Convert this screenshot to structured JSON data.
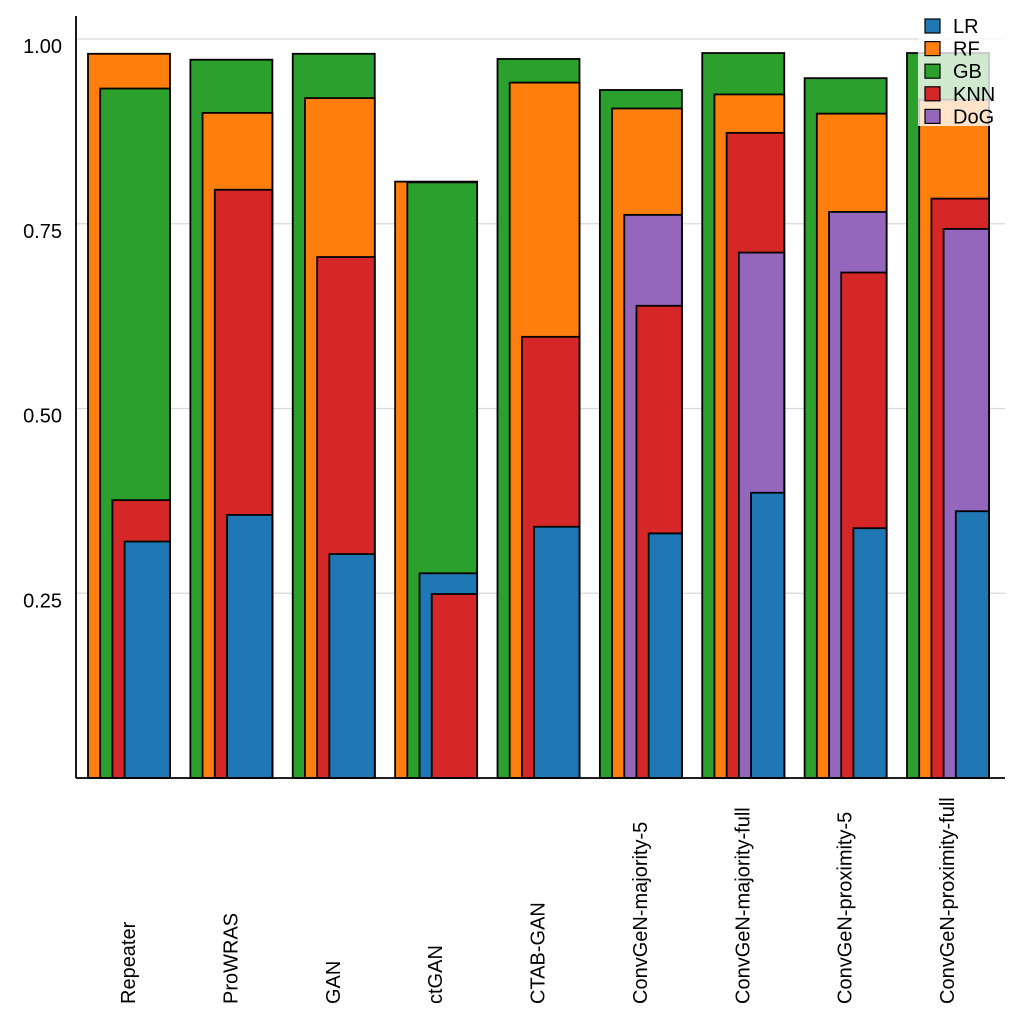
{
  "chart_data": {
    "type": "bar",
    "overlay_style": "grouped-overlay-right-aligned-decreasing-width",
    "categories": [
      "Repeater",
      "ProWRAS",
      "GAN",
      "ctGAN",
      "CTAB-GAN",
      "ConvGeN-majority-5",
      "ConvGeN-majority-full",
      "ConvGeN-proximity-5",
      "ConvGeN-proximity-full"
    ],
    "series": [
      {
        "name": "LR",
        "color": "#1f77b4",
        "values": [
          0.32,
          0.356,
          0.303,
          0.277,
          0.34,
          0.331,
          0.386,
          0.338,
          0.361
        ]
      },
      {
        "name": "RF",
        "color": "#ff7f0e",
        "values": [
          0.98,
          0.9,
          0.92,
          0.807,
          0.941,
          0.906,
          0.925,
          0.899,
          0.918
        ]
      },
      {
        "name": "GB",
        "color": "#2ca02c",
        "values": [
          0.933,
          0.972,
          0.98,
          0.806,
          0.973,
          0.931,
          0.981,
          0.947,
          0.981
        ]
      },
      {
        "name": "KNN",
        "color": "#d62728",
        "values": [
          0.376,
          0.796,
          0.705,
          0.249,
          0.597,
          0.639,
          0.873,
          0.684,
          0.784
        ]
      },
      {
        "name": "DoG",
        "color": "#9467bd",
        "values": [
          null,
          null,
          null,
          null,
          null,
          0.762,
          0.711,
          0.766,
          0.743
        ]
      }
    ],
    "ylim": [
      0,
      1.03
    ],
    "yticks": [
      {
        "value": 1.0,
        "label": "1.00"
      },
      {
        "value": 0.75,
        "label": "0.75"
      },
      {
        "value": 0.5,
        "label": "0.50"
      },
      {
        "value": 0.25,
        "label": "0.25"
      }
    ],
    "grid": "horizontal",
    "legend_position": "top-right",
    "legend_labels": [
      "LR",
      "RF",
      "GB",
      "KNN",
      "DoG"
    ],
    "gridline_color": "#d9d9d9",
    "axis_color": "#000000",
    "bar_border_color": "#000000"
  }
}
